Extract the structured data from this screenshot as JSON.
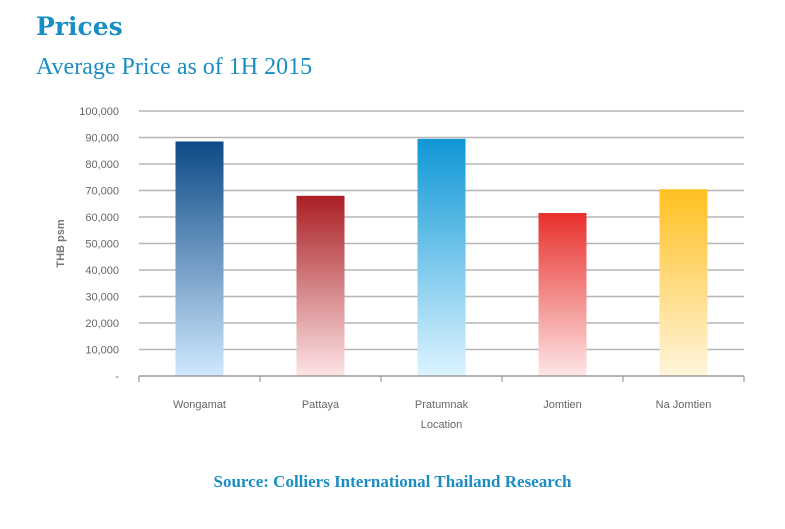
{
  "header": {
    "title": "Prices",
    "subtitle": "Average Price as of 1H 2015"
  },
  "footer": {
    "source": "Source: Colliers International Thailand Research"
  },
  "chart_data": {
    "type": "bar",
    "categories": [
      "Wongamat",
      "Pattaya",
      "Pratumnak",
      "Jomtien",
      "Na Jomtien"
    ],
    "values": [
      88500,
      68000,
      89500,
      61500,
      70500
    ],
    "xlabel": "Location",
    "ylabel": "THB psm",
    "ylim": [
      0,
      100000
    ],
    "yticks": [
      0,
      10000,
      20000,
      30000,
      40000,
      50000,
      60000,
      70000,
      80000,
      90000,
      100000
    ],
    "ytick_labels": [
      "-",
      "10,000",
      "20,000",
      "30,000",
      "40,000",
      "50,000",
      "60,000",
      "70,000",
      "80,000",
      "90,000",
      "100,000"
    ],
    "grid": true,
    "bar_colors": [
      {
        "top": "#0d4a86",
        "bottom": "#cfe8ff"
      },
      {
        "top": "#a91f24",
        "bottom": "#fde4e6"
      },
      {
        "top": "#0f97d6",
        "bottom": "#dcf4ff"
      },
      {
        "top": "#e8302c",
        "bottom": "#fde6e6"
      },
      {
        "top": "#ffc021",
        "bottom": "#fff5dc"
      }
    ]
  }
}
